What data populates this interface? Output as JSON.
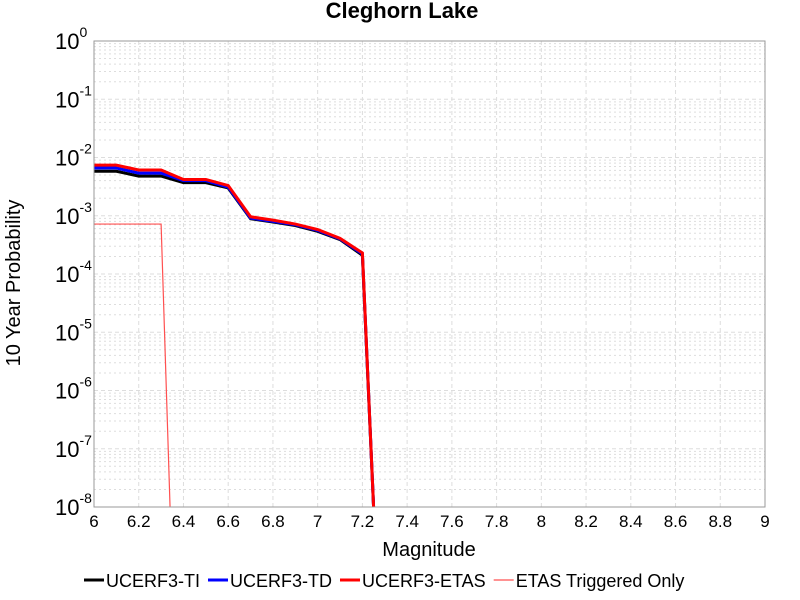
{
  "chart_data": {
    "type": "line",
    "title": "Cleghorn Lake",
    "xlabel": "Magnitude",
    "ylabel": "10 Year Probability",
    "xlim": [
      6,
      9
    ],
    "ylim": [
      1e-08,
      1
    ],
    "yscale": "log",
    "grid": true,
    "legend_position": "bottom",
    "x_ticks": [
      "6",
      "6.2",
      "6.4",
      "6.6",
      "6.8",
      "7",
      "7.2",
      "7.4",
      "7.6",
      "7.8",
      "8",
      "8.2",
      "8.4",
      "8.6",
      "8.8",
      "9"
    ],
    "y_ticks": [
      {
        "base": "10",
        "exp": "0"
      },
      {
        "base": "10",
        "exp": "-1"
      },
      {
        "base": "10",
        "exp": "-2"
      },
      {
        "base": "10",
        "exp": "-3"
      },
      {
        "base": "10",
        "exp": "-4"
      },
      {
        "base": "10",
        "exp": "-5"
      },
      {
        "base": "10",
        "exp": "-6"
      },
      {
        "base": "10",
        "exp": "-7"
      },
      {
        "base": "10",
        "exp": "-8"
      }
    ],
    "series": [
      {
        "name": "UCERF3-TI",
        "color": "#000000",
        "width": 3,
        "x": [
          6.0,
          6.1,
          6.2,
          6.3,
          6.4,
          6.5,
          6.6,
          6.7,
          6.8,
          6.9,
          7.0,
          7.1,
          7.2,
          7.25
        ],
        "y": [
          0.0058,
          0.0058,
          0.0048,
          0.0048,
          0.0037,
          0.0037,
          0.003,
          0.00089,
          0.00078,
          0.00068,
          0.00054,
          0.00039,
          0.00021,
          1e-08
        ]
      },
      {
        "name": "UCERF3-TD",
        "color": "#0000ff",
        "width": 3,
        "x": [
          6.0,
          6.1,
          6.2,
          6.3,
          6.4,
          6.5,
          6.6,
          6.7,
          6.8,
          6.9,
          7.0,
          7.1,
          7.2,
          7.25
        ],
        "y": [
          0.0066,
          0.0066,
          0.0054,
          0.0054,
          0.004,
          0.004,
          0.0031,
          0.00091,
          0.0008,
          0.0007,
          0.00056,
          0.0004,
          0.00022,
          1e-08
        ]
      },
      {
        "name": "UCERF3-ETAS",
        "color": "#ff0000",
        "width": 3,
        "x": [
          6.0,
          6.1,
          6.2,
          6.3,
          6.4,
          6.5,
          6.6,
          6.7,
          6.8,
          6.9,
          7.0,
          7.1,
          7.2,
          7.25
        ],
        "y": [
          0.0074,
          0.0074,
          0.0061,
          0.0061,
          0.0042,
          0.0042,
          0.0033,
          0.00096,
          0.00084,
          0.00072,
          0.00058,
          0.00041,
          0.00023,
          1e-08
        ]
      },
      {
        "name": "ETAS Triggered Only",
        "color": "#ff5050",
        "width": 1.2,
        "x": [
          6.0,
          6.1,
          6.2,
          6.3,
          6.34
        ],
        "y": [
          0.00072,
          0.00072,
          0.00072,
          0.00072,
          1e-08
        ]
      }
    ]
  }
}
